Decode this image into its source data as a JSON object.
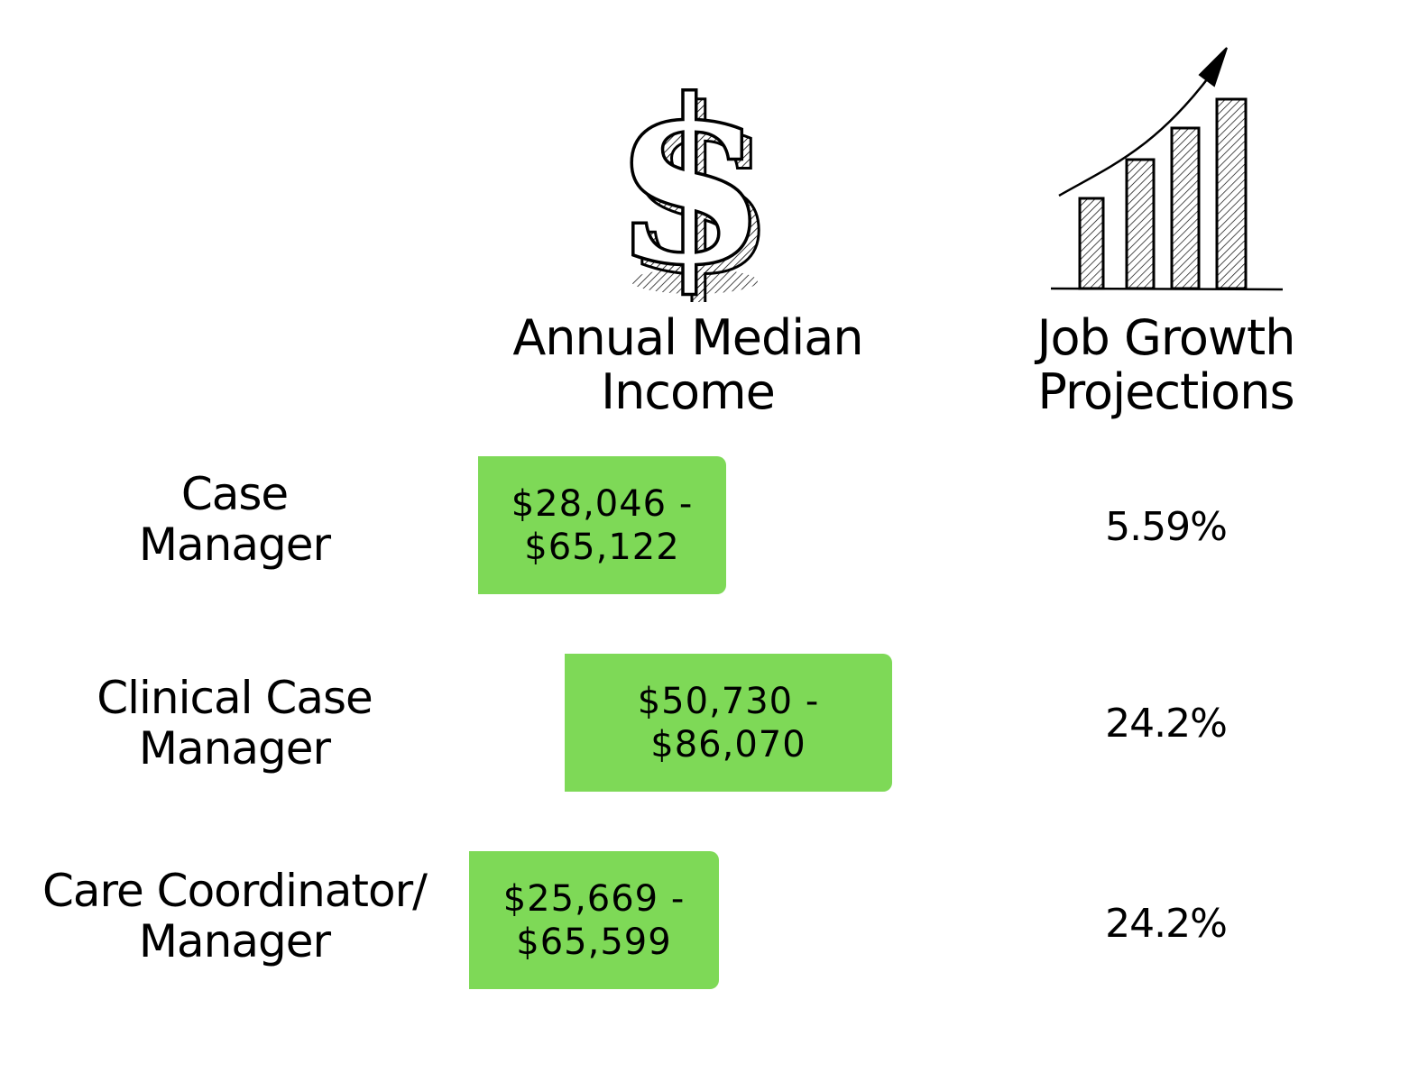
{
  "headers": {
    "income": {
      "line1": "Annual Median",
      "line2": "Income",
      "icon": "dollar-sign-icon"
    },
    "growth": {
      "line1": "Job Growth",
      "line2": "Projections",
      "icon": "bar-chart-growth-icon"
    }
  },
  "rows": [
    {
      "label_line1": "Case",
      "label_line2": "Manager",
      "income_line1": "$28,046 -",
      "income_line2": "$65,122",
      "growth": "5.59%"
    },
    {
      "label_line1": "Clinical Case",
      "label_line2": "Manager",
      "income_line1": "$50,730 -",
      "income_line2": "$86,070",
      "growth": "24.2%"
    },
    {
      "label_line1": "Care Coordinator/",
      "label_line2": "Manager",
      "income_line1": "$25,669 -",
      "income_line2": "$65,599",
      "growth": "24.2%"
    }
  ],
  "colors": {
    "income_box": "#7ed957",
    "text": "#000000",
    "background": "#ffffff"
  }
}
